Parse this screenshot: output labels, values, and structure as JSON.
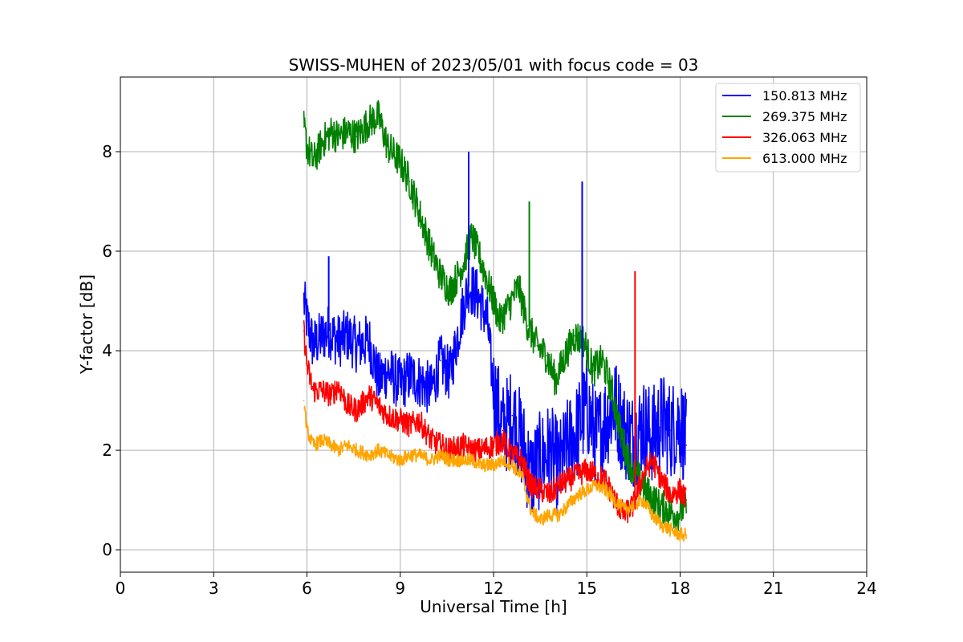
{
  "chart_data": {
    "type": "line",
    "title": "SWISS-MUHEN of 2023/05/01 with focus code = 03",
    "xlabel": "Universal Time [h]",
    "ylabel": "Y-factor [dB]",
    "xlim": [
      0,
      24
    ],
    "ylim": [
      -0.45,
      9.5
    ],
    "xticks": [
      0,
      3,
      6,
      9,
      12,
      15,
      18,
      21,
      24
    ],
    "yticks": [
      0,
      2,
      4,
      6,
      8
    ],
    "grid": true,
    "legend_position": "top-right",
    "series": [
      {
        "name": "150.813 MHz",
        "color": "#0000ff",
        "x": [
          5.9,
          6.0,
          6.2,
          6.5,
          6.7,
          7.0,
          7.3,
          7.6,
          8.0,
          8.3,
          8.6,
          9.0,
          9.3,
          9.6,
          10.0,
          10.3,
          10.6,
          11.0,
          11.2,
          11.5,
          11.8,
          12.0,
          12.3,
          12.6,
          12.9,
          13.2,
          13.5,
          13.8,
          14.1,
          14.4,
          14.7,
          15.0,
          15.3,
          15.6,
          15.9,
          16.2,
          16.5,
          16.8,
          17.1,
          17.4,
          17.7,
          18.0,
          18.2
        ],
        "y": [
          5.0,
          4.6,
          4.1,
          4.3,
          4.4,
          4.2,
          4.3,
          4.1,
          4.2,
          3.4,
          3.6,
          3.3,
          3.5,
          3.4,
          3.2,
          3.8,
          3.5,
          4.8,
          5.3,
          5.1,
          4.6,
          3.2,
          2.4,
          2.7,
          2.2,
          1.5,
          1.8,
          2.0,
          1.6,
          2.1,
          2.4,
          2.9,
          2.2,
          2.6,
          2.9,
          2.4,
          2.2,
          2.5,
          2.3,
          2.6,
          2.4,
          2.6,
          2.1
        ]
      },
      {
        "name": "269.375 MHz",
        "color": "#008000",
        "x": [
          5.9,
          6.0,
          6.2,
          6.5,
          6.8,
          7.0,
          7.3,
          7.6,
          8.0,
          8.3,
          8.6,
          9.0,
          9.3,
          9.6,
          10.0,
          10.3,
          10.6,
          11.0,
          11.3,
          11.6,
          11.9,
          12.2,
          12.5,
          12.8,
          13.1,
          13.4,
          13.7,
          14.0,
          14.3,
          14.6,
          14.9,
          15.2,
          15.5,
          15.8,
          16.1,
          16.4,
          16.7,
          17.0,
          17.3,
          17.6,
          17.9,
          18.2
        ],
        "y": [
          8.5,
          8.1,
          7.8,
          8.2,
          8.4,
          8.3,
          8.4,
          8.3,
          8.6,
          8.7,
          8.1,
          7.8,
          7.4,
          6.8,
          6.0,
          5.5,
          5.2,
          5.7,
          6.3,
          5.8,
          5.2,
          4.6,
          4.9,
          5.3,
          4.5,
          4.1,
          3.9,
          3.4,
          3.9,
          4.3,
          4.2,
          3.6,
          3.8,
          3.2,
          2.3,
          1.7,
          1.4,
          1.1,
          0.9,
          0.8,
          0.7,
          0.9
        ]
      },
      {
        "name": "326.063 MHz",
        "color": "#ff0000",
        "x": [
          5.9,
          6.0,
          6.2,
          6.5,
          6.8,
          7.0,
          7.3,
          7.6,
          8.0,
          8.3,
          8.6,
          9.0,
          9.3,
          9.6,
          10.0,
          10.3,
          10.6,
          11.0,
          11.3,
          11.6,
          12.0,
          12.3,
          12.6,
          12.9,
          13.2,
          13.5,
          13.8,
          14.1,
          14.4,
          14.7,
          15.0,
          15.3,
          15.6,
          15.9,
          16.2,
          16.5,
          16.8,
          17.1,
          17.4,
          17.7,
          18.0,
          18.2
        ],
        "y": [
          4.4,
          3.7,
          3.2,
          3.2,
          3.1,
          3.3,
          2.9,
          2.8,
          3.1,
          2.9,
          2.7,
          2.6,
          2.5,
          2.6,
          2.2,
          2.1,
          2.0,
          2.1,
          2.0,
          2.0,
          2.1,
          2.2,
          1.9,
          1.8,
          1.3,
          1.2,
          1.1,
          1.3,
          1.4,
          1.5,
          1.6,
          1.5,
          1.4,
          1.0,
          0.7,
          0.9,
          1.5,
          1.8,
          1.4,
          1.1,
          1.2,
          1.0
        ]
      },
      {
        "name": "613.000 MHz",
        "color": "#ffa500",
        "x": [
          5.9,
          6.0,
          6.2,
          6.5,
          6.8,
          7.0,
          7.3,
          7.6,
          8.0,
          8.3,
          8.6,
          9.0,
          9.3,
          9.6,
          10.0,
          10.3,
          10.6,
          11.0,
          11.3,
          11.6,
          12.0,
          12.3,
          12.6,
          12.9,
          13.2,
          13.5,
          13.8,
          14.1,
          14.4,
          14.7,
          15.0,
          15.3,
          15.6,
          15.9,
          16.2,
          16.5,
          16.8,
          17.1,
          17.4,
          17.7,
          18.0,
          18.2
        ],
        "y": [
          3.0,
          2.4,
          2.1,
          2.2,
          2.1,
          2.0,
          2.1,
          2.0,
          1.9,
          2.0,
          1.9,
          1.8,
          1.9,
          1.9,
          1.8,
          1.9,
          1.8,
          1.8,
          1.8,
          1.7,
          1.7,
          1.8,
          1.7,
          1.5,
          0.8,
          0.6,
          0.7,
          0.7,
          0.9,
          1.1,
          1.2,
          1.3,
          1.2,
          1.0,
          0.8,
          0.9,
          1.0,
          0.7,
          0.5,
          0.4,
          0.3,
          0.3
        ]
      }
    ],
    "annotations": [
      {
        "series": 0,
        "x": 11.2,
        "y": 8.0
      },
      {
        "series": 0,
        "x": 14.85,
        "y": 7.4
      },
      {
        "series": 1,
        "x": 13.15,
        "y": 7.0
      },
      {
        "series": 2,
        "x": 16.55,
        "y": 5.6
      },
      {
        "series": 0,
        "x": 6.7,
        "y": 5.9
      }
    ]
  }
}
